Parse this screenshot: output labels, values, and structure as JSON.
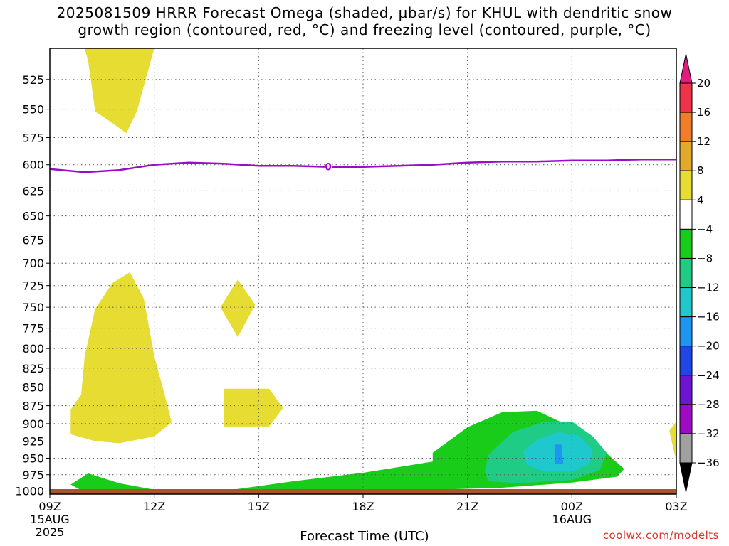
{
  "title": {
    "line1": "2025081509 HRRR Forecast Omega (shaded, μbar/s) for KHUL with dendritic snow",
    "line2": "growth region (contoured, red, °C) and freezing level (contoured, purple, °C)"
  },
  "credit": "coolwx.com/modelts",
  "chart_data": {
    "type": "time-height cross section",
    "xlabel": "Forecast Time (UTC)",
    "ylabel": "",
    "x_ticks": [
      {
        "label": "09Z",
        "sub1": "15AUG",
        "sub2": "2025",
        "hour": 0
      },
      {
        "label": "12Z",
        "sub1": "",
        "sub2": "",
        "hour": 3
      },
      {
        "label": "15Z",
        "sub1": "",
        "sub2": "",
        "hour": 6
      },
      {
        "label": "18Z",
        "sub1": "",
        "sub2": "",
        "hour": 9
      },
      {
        "label": "21Z",
        "sub1": "",
        "sub2": "",
        "hour": 12
      },
      {
        "label": "00Z",
        "sub1": "16AUG",
        "sub2": "",
        "hour": 15
      },
      {
        "label": "03Z",
        "sub1": "",
        "sub2": "",
        "hour": 18
      }
    ],
    "xlim_hours": [
      0,
      18
    ],
    "y_ticks": [
      525,
      550,
      575,
      600,
      625,
      650,
      675,
      700,
      725,
      750,
      775,
      800,
      825,
      850,
      875,
      900,
      925,
      950,
      975,
      1000
    ],
    "ylim_hPa": [
      500,
      1005
    ],
    "y_scale": "log-pressure",
    "grid": true,
    "freezing_level": {
      "label": "0",
      "color": "#9a0cc8",
      "points": [
        [
          0,
          604
        ],
        [
          1,
          607
        ],
        [
          2,
          605
        ],
        [
          3,
          600
        ],
        [
          4,
          598
        ],
        [
          5,
          599
        ],
        [
          6,
          601
        ],
        [
          7,
          601
        ],
        [
          8,
          602
        ],
        [
          9,
          602
        ],
        [
          10,
          601
        ],
        [
          11,
          600
        ],
        [
          12,
          598
        ],
        [
          13,
          597
        ],
        [
          14,
          597
        ],
        [
          15,
          596
        ],
        [
          16,
          596
        ],
        [
          17,
          595
        ],
        [
          18,
          595
        ]
      ]
    },
    "omega_regions": [
      {
        "name": "up-4-8-a",
        "fill": "#e6dc32",
        "points": [
          [
            1,
            500
          ],
          [
            3,
            500
          ],
          [
            2.8,
            520
          ],
          [
            2.5,
            552
          ],
          [
            2.2,
            571
          ],
          [
            1.7,
            560
          ],
          [
            1.3,
            552
          ],
          [
            1.2,
            530
          ],
          [
            1.1,
            510
          ]
        ]
      },
      {
        "name": "up-4-8-b",
        "fill": "#e6dc32",
        "points": [
          [
            1.3,
            752
          ],
          [
            1.8,
            722
          ],
          [
            2.3,
            710
          ],
          [
            2.7,
            740
          ],
          [
            3,
            810
          ],
          [
            3.3,
            860
          ],
          [
            3.5,
            898
          ],
          [
            3,
            918
          ],
          [
            2,
            928
          ],
          [
            1.3,
            925
          ],
          [
            0.6,
            915
          ],
          [
            0.6,
            880
          ],
          [
            0.9,
            860
          ],
          [
            1.0,
            810
          ]
        ]
      },
      {
        "name": "up-4-8-c",
        "fill": "#e6dc32",
        "points": [
          [
            4.9,
            750
          ],
          [
            5.4,
            718
          ],
          [
            5.9,
            747
          ],
          [
            5.4,
            786
          ]
        ]
      },
      {
        "name": "up-4-8-d",
        "fill": "#e6dc32",
        "points": [
          [
            5.0,
            852
          ],
          [
            6.3,
            852
          ],
          [
            6.7,
            878
          ],
          [
            6.3,
            904
          ],
          [
            5.0,
            904
          ]
        ]
      },
      {
        "name": "up-4-8-e",
        "fill": "#e6dc32",
        "points": [
          [
            18,
            897
          ],
          [
            17.8,
            910
          ],
          [
            18,
            955
          ]
        ]
      },
      {
        "name": "down-4-8",
        "fill": "#1acc1a",
        "points": [
          [
            0.6,
            990
          ],
          [
            1.1,
            973
          ],
          [
            2,
            988
          ],
          [
            3,
            998
          ],
          [
            5,
            1000
          ],
          [
            7,
            985
          ],
          [
            9,
            972
          ],
          [
            11,
            955
          ],
          [
            11,
            942
          ],
          [
            12,
            905
          ],
          [
            13,
            884
          ],
          [
            14,
            882
          ],
          [
            15,
            905
          ],
          [
            16,
            943
          ],
          [
            16.5,
            966
          ],
          [
            16.3,
            978
          ],
          [
            15,
            987
          ],
          [
            13,
            995
          ],
          [
            10,
            1000
          ],
          [
            7,
            1002
          ],
          [
            4,
            1003
          ],
          [
            1,
            1002
          ]
        ]
      },
      {
        "name": "down-8-12",
        "fill": "#1fcc85",
        "points": [
          [
            12.5,
            970
          ],
          [
            12.6,
            945
          ],
          [
            13.3,
            912
          ],
          [
            14.2,
            897
          ],
          [
            15,
            897
          ],
          [
            15.6,
            918
          ],
          [
            16,
            942
          ],
          [
            15.8,
            968
          ],
          [
            15,
            983
          ],
          [
            13.5,
            988
          ],
          [
            12.6,
            985
          ]
        ]
      },
      {
        "name": "down-12-16",
        "fill": "#1ec8cc",
        "points": [
          [
            13.6,
            940
          ],
          [
            14,
            923
          ],
          [
            14.6,
            912
          ],
          [
            15.2,
            917
          ],
          [
            15.6,
            938
          ],
          [
            15.5,
            958
          ],
          [
            15,
            970
          ],
          [
            14.2,
            970
          ],
          [
            13.7,
            960
          ]
        ]
      },
      {
        "name": "down-16-20",
        "fill": "#1e96f0",
        "points": [
          [
            14.5,
            930
          ],
          [
            14.7,
            930
          ],
          [
            14.75,
            958
          ],
          [
            14.5,
            958
          ]
        ]
      }
    ],
    "ground_color": "#a9542b",
    "colorbar": {
      "labels": [
        "20",
        "16",
        "12",
        "8",
        "4",
        "-4",
        "-8",
        "-12",
        "-16",
        "-20",
        "-24",
        "-28",
        "-32",
        "-36"
      ],
      "colors": [
        "#f0324b",
        "#f07d28",
        "#e1aa2d",
        "#e6dc32",
        "#ffffff",
        "#1acc1a",
        "#1fcc85",
        "#1ec8cc",
        "#1e96f0",
        "#2046e6",
        "#6e14d2",
        "#a00ac3",
        "#a0a0a0"
      ],
      "top_arrow_color": "#e6197f",
      "bottom_arrow_color": "#000000"
    }
  }
}
